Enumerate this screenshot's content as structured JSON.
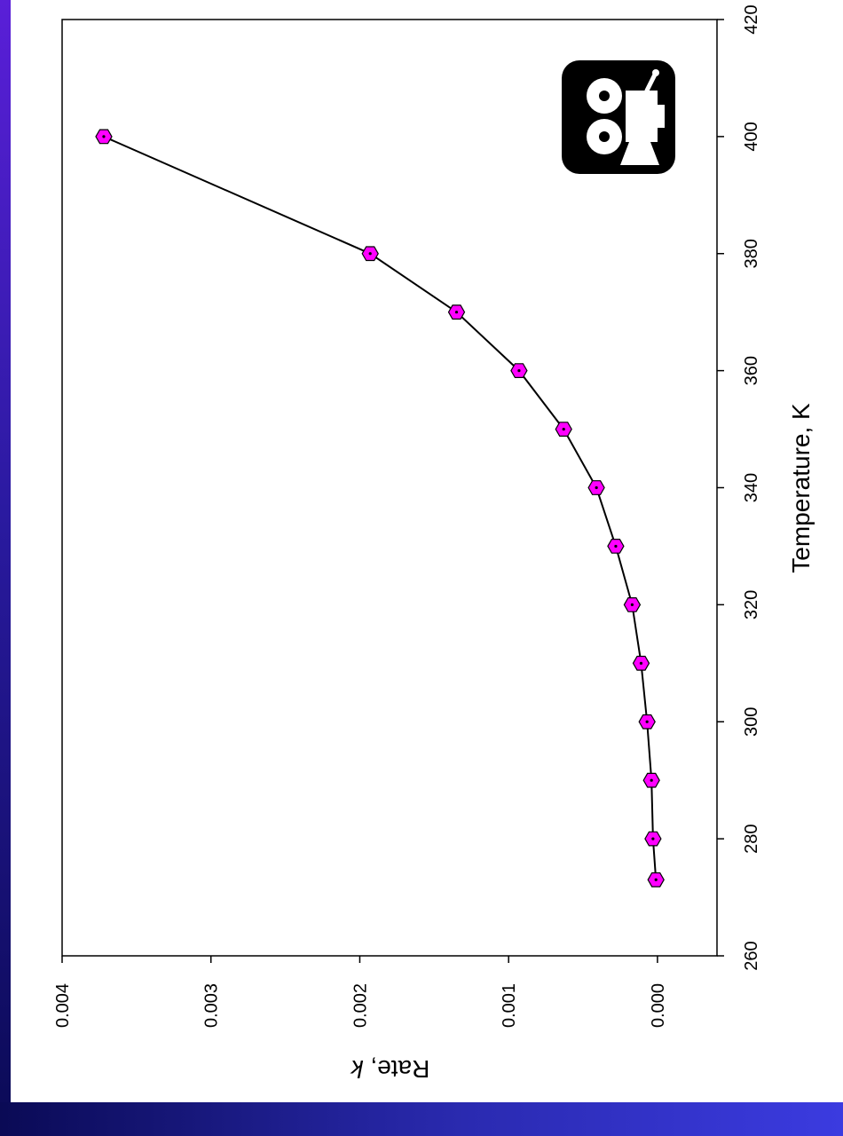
{
  "chart_data": {
    "type": "line",
    "xlabel": "Temperature, K",
    "ylabel_prefix": "Rate, ",
    "ylabel_var": "k",
    "xlim": [
      260,
      420
    ],
    "ylim": [
      -0.0004,
      0.004
    ],
    "x_ticks": [
      260,
      280,
      300,
      320,
      340,
      360,
      380,
      400,
      420
    ],
    "y_ticks": [
      0.0,
      0.001,
      0.002,
      0.003,
      0.004
    ],
    "y_tick_labels": [
      "0.000",
      "0.001",
      "0.002",
      "0.003",
      "0.004"
    ],
    "grid": false,
    "orientation": "rotated-90-clockwise",
    "marker": "hexagon",
    "colors": {
      "marker_fill": "#ff00ff",
      "line": "#000000"
    },
    "series": [
      {
        "x": [
          273,
          280,
          290,
          300,
          310,
          320,
          330,
          340,
          350,
          360,
          370,
          380,
          400
        ],
        "y": [
          1e-05,
          3e-05,
          4e-05,
          7e-05,
          0.00011,
          0.00017,
          0.00028,
          0.00041,
          0.00063,
          0.00093,
          0.00135,
          0.00193,
          0.00372
        ]
      }
    ]
  },
  "icon": {
    "name": "movie-camera-icon",
    "background": "#000000",
    "foreground": "#ffffff"
  },
  "decor": {
    "left_band_color": "#2a1aa0",
    "bottom_band_color": "#1e1e90"
  }
}
